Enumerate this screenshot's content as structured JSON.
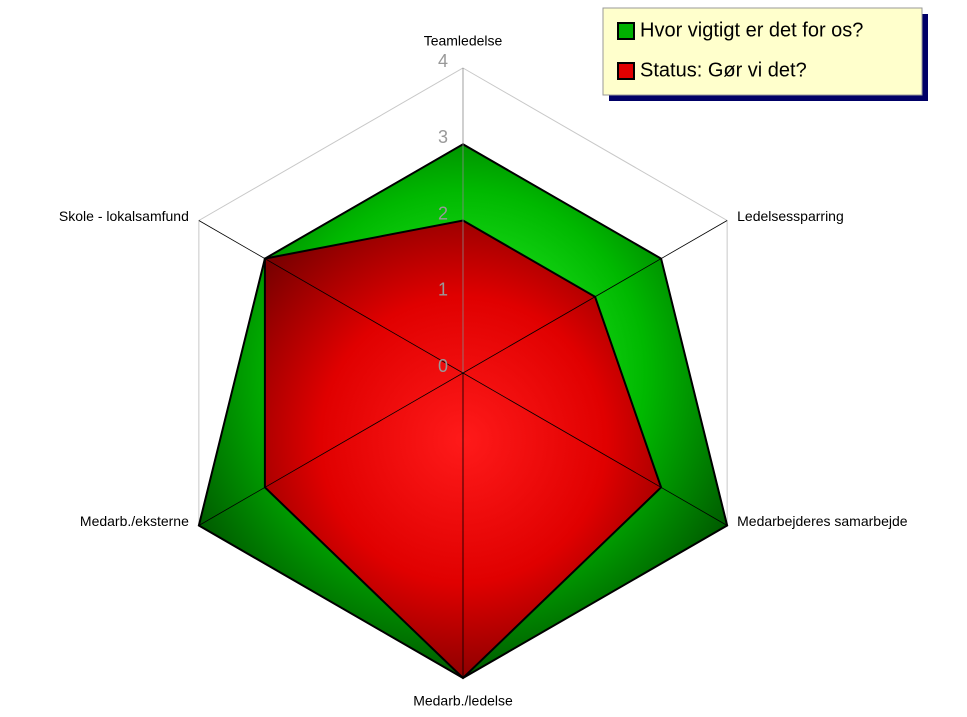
{
  "chart_data": {
    "type": "radar",
    "categories": [
      "Teamledelse",
      "Ledelsessparring",
      "Medarbejderes samarbejde",
      "Medarb./ledelse",
      "Medarb./eksterne",
      "Skole - lokalsamfund"
    ],
    "series": [
      {
        "name": "Hvor vigtigt er det for os?",
        "color": "#00b000",
        "values": [
          3,
          3,
          4,
          4,
          4,
          3
        ]
      },
      {
        "name": "Status: Gør vi det?",
        "color": "#e00000",
        "values": [
          2,
          2,
          3,
          4,
          3,
          3
        ]
      }
    ],
    "ylim": [
      0,
      4
    ],
    "yticks": [
      0,
      1,
      2,
      3,
      4
    ],
    "legend": "top-right"
  }
}
